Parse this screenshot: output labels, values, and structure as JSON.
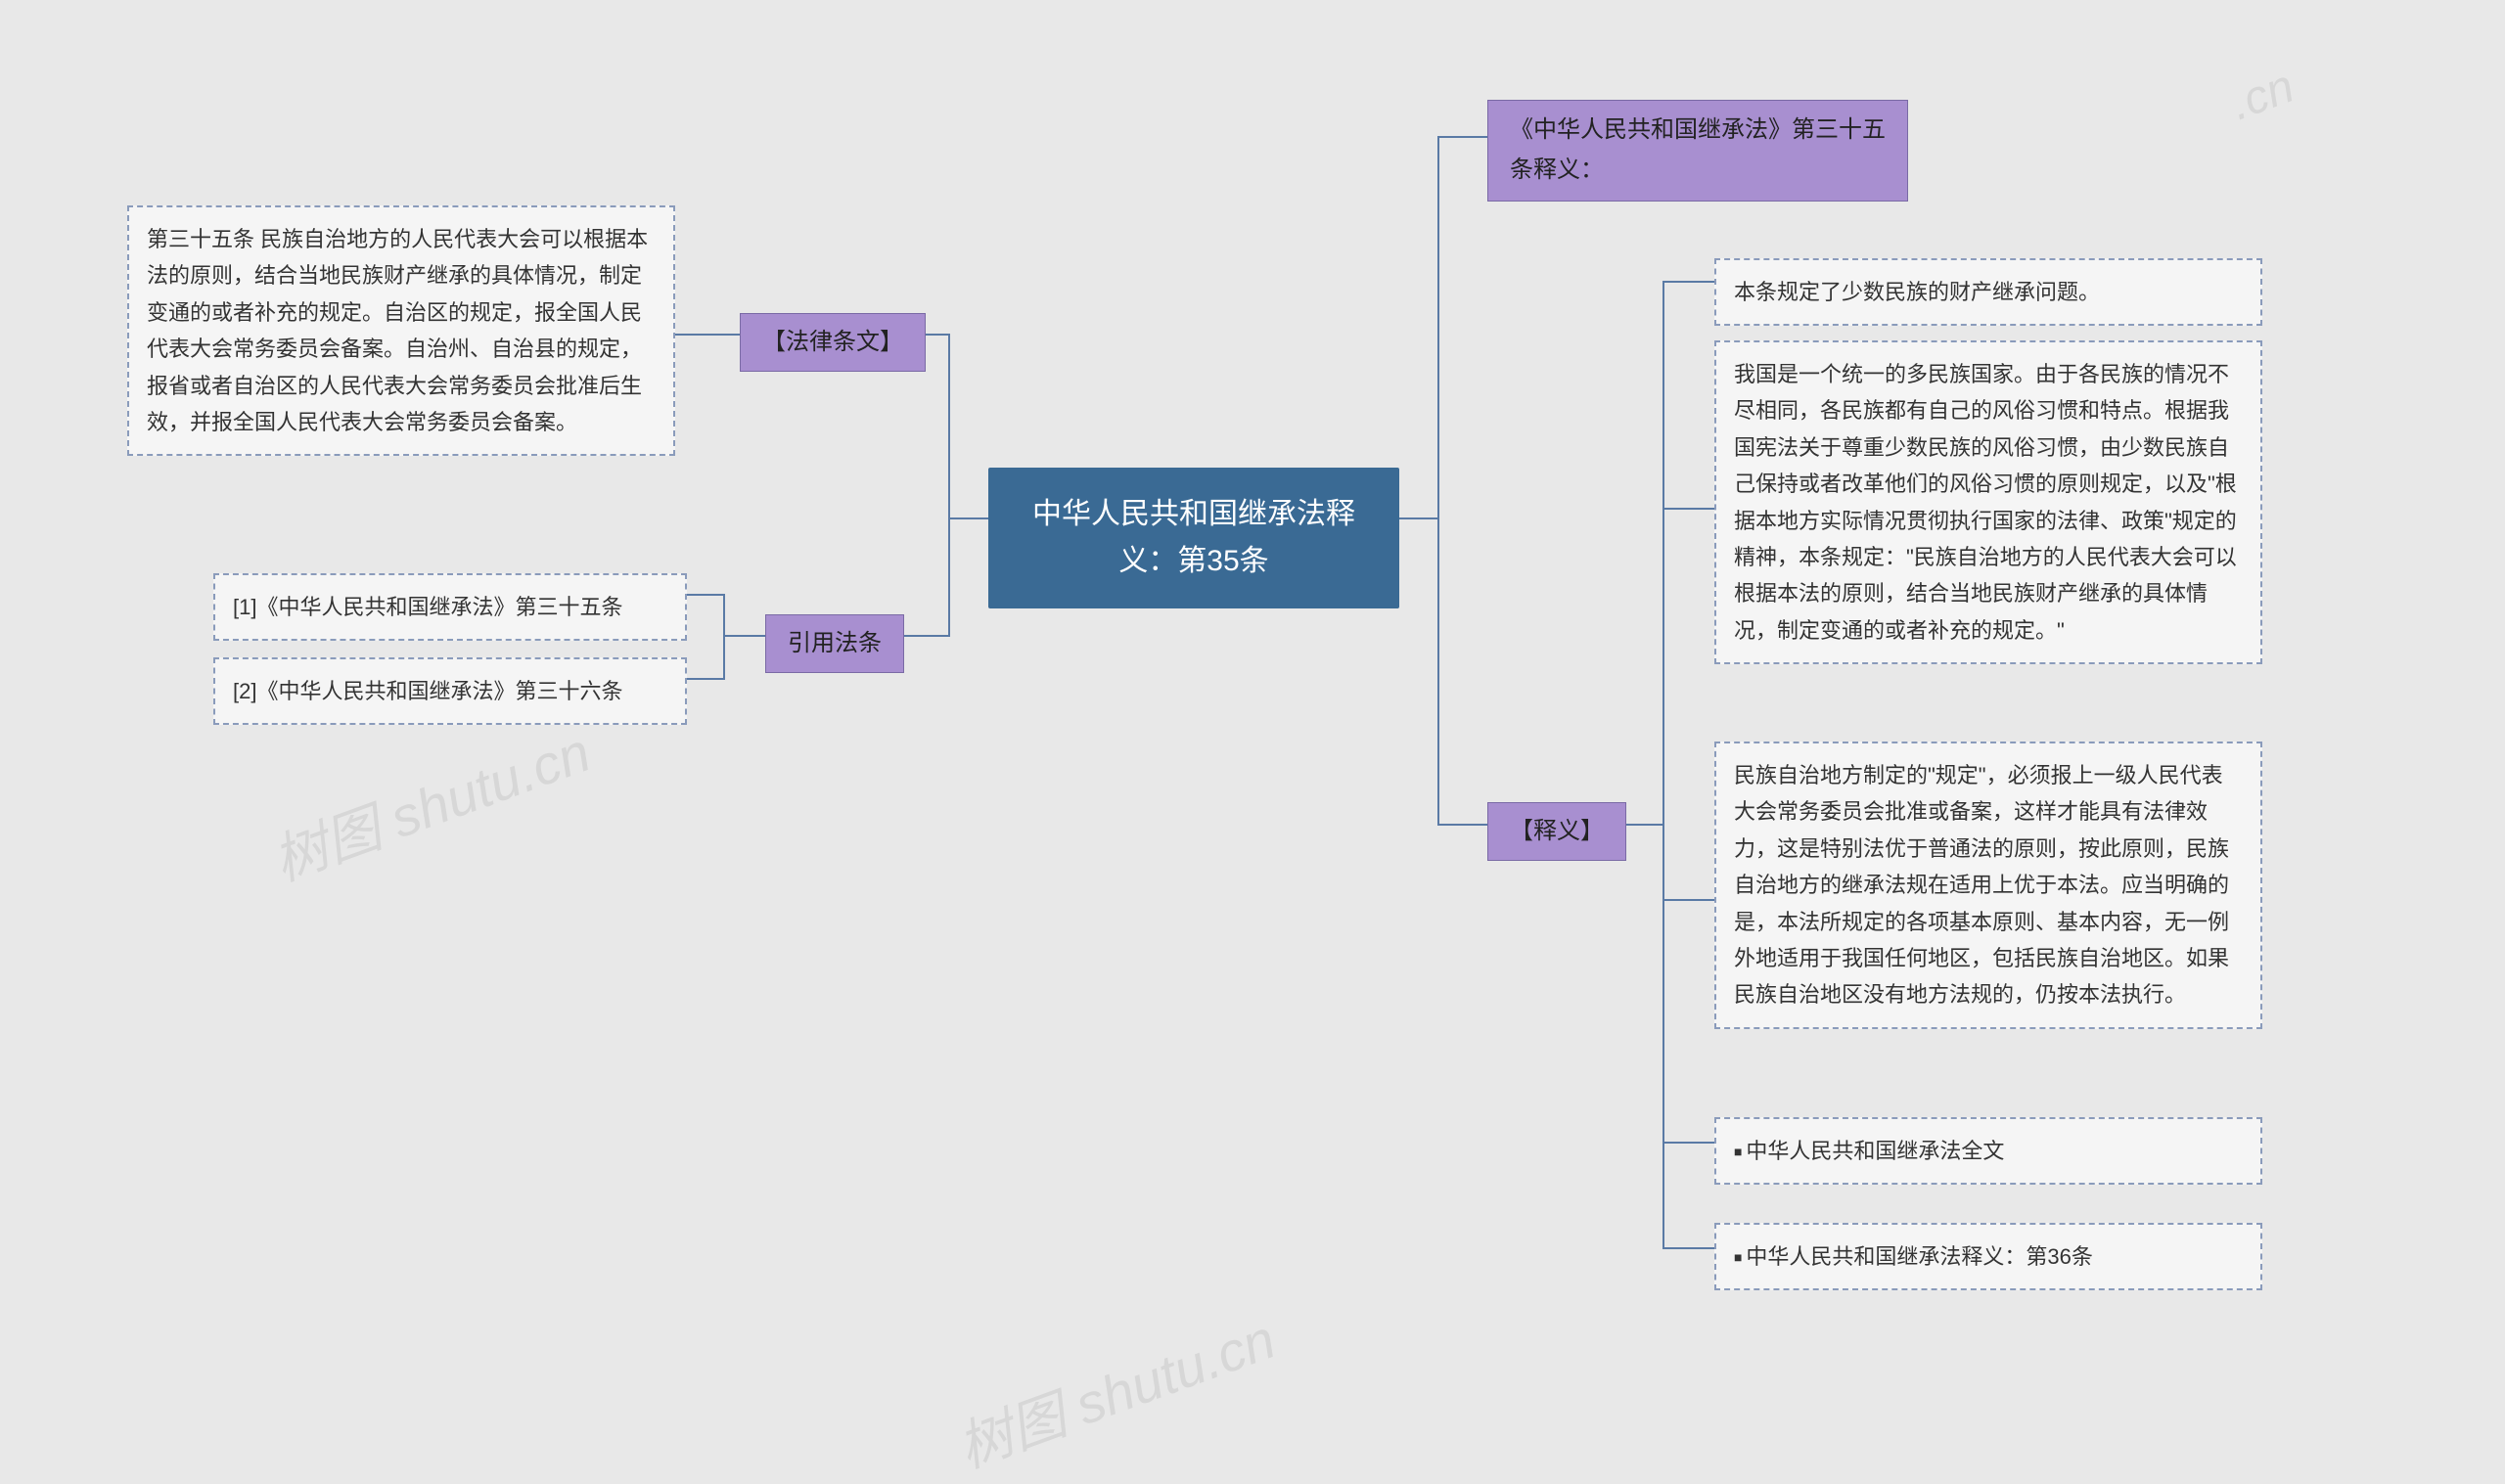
{
  "diagram": {
    "type": "mindmap",
    "background_color": "#e8e8e8",
    "root": {
      "text": "中华人民共和国继承法释\n义：第35条",
      "bg_color": "#3a6a94",
      "text_color": "#ffffff",
      "fontsize": 30
    },
    "category_style": {
      "bg_color": "#a88fd0",
      "border_color": "#7a6aa5",
      "text_color": "#222222",
      "fontsize": 24
    },
    "leaf_style": {
      "bg_color": "#f5f5f5",
      "border_color": "#8a9bbb",
      "border_style": "dashed",
      "text_color": "#333333",
      "fontsize": 22
    },
    "connector_color": "#5a7aa5",
    "left": {
      "law_text": {
        "label": "【法律条文】",
        "content": "第三十五条 民族自治地方的人民代表大会可以根据本法的原则，结合当地民族财产继承的具体情况，制定变通的或者补充的规定。自治区的规定，报全国人民代表大会常务委员会备案。自治州、自治县的规定，报省或者自治区的人民代表大会常务委员会批准后生效，并报全国人民代表大会常务委员会备案。"
      },
      "citations": {
        "label": "引用法条",
        "items": [
          "[1]《中华人民共和国继承法》第三十五条",
          "[2]《中华人民共和国继承法》第三十六条"
        ]
      }
    },
    "right": {
      "title_node": "《中华人民共和国继承法》第三十五条释义：",
      "interpretation": {
        "label": "【释义】",
        "paragraphs": [
          "本条规定了少数民族的财产继承问题。",
          "我国是一个统一的多民族国家。由于各民族的情况不尽相同，各民族都有自己的风俗习惯和特点。根据我国宪法关于尊重少数民族的风俗习惯，由少数民族自己保持或者改革他们的风俗习惯的原则规定，以及\"根据本地方实际情况贯彻执行国家的法律、政策\"规定的精神，本条规定：\"民族自治地方的人民代表大会可以根据本法的原则，结合当地民族财产继承的具体情况，制定变通的或者补充的规定。\"",
          "民族自治地方制定的\"规定\"，必须报上一级人民代表大会常务委员会批准或备案，这样才能具有法律效力，这是特别法优于普通法的原则，按此原则，民族自治地方的继承法规在适用上优于本法。应当明确的是，本法所规定的各项基本原则、基本内容，无一例外地适用于我国任何地区，包括民族自治地区。如果民族自治地区没有地方法规的，仍按本法执行。"
        ],
        "links": [
          "中华人民共和国继承法全文",
          "中华人民共和国继承法释义：第36条"
        ]
      }
    },
    "watermark": "树图 shutu.cn"
  }
}
